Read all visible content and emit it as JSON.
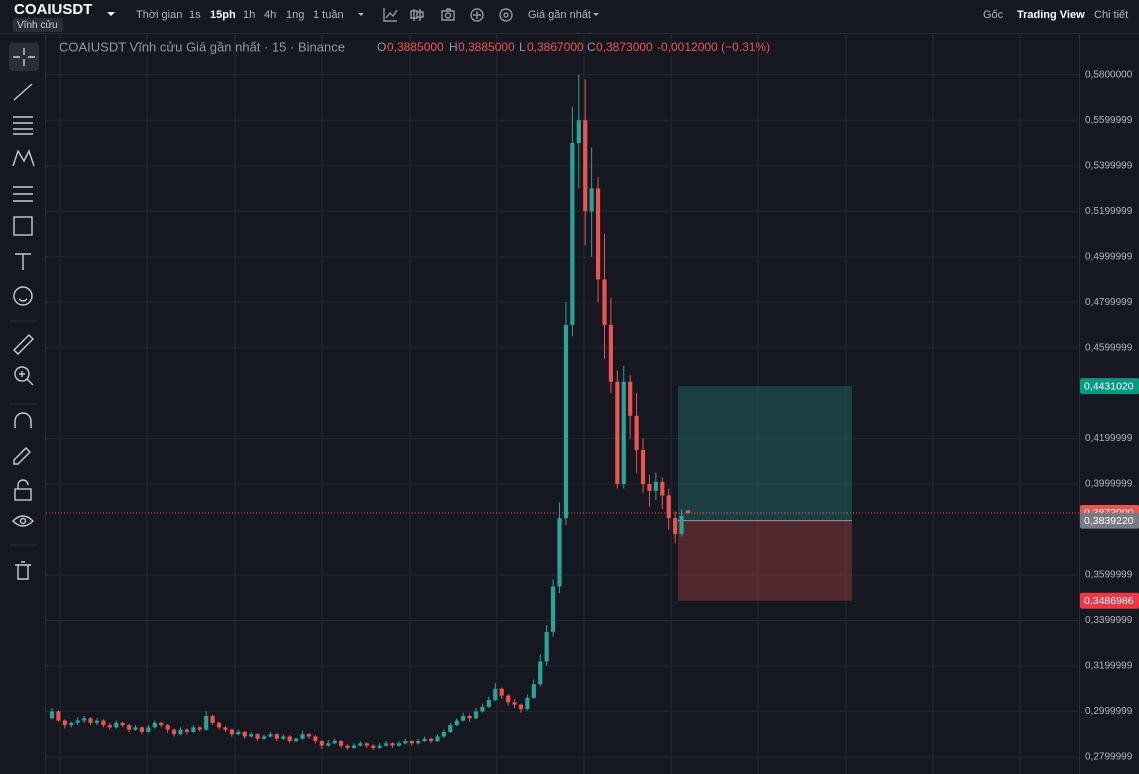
{
  "toolbar": {
    "symbol": "COAIUSDT",
    "contract": "Vĩnh cửu",
    "intervals_label": "Thời gian",
    "intervals": [
      "1s",
      "15ph",
      "1h",
      "4h",
      "1ng",
      "1 tuần"
    ],
    "price_type": "Giá gần nhất",
    "views": [
      "Gốc",
      "Trading View",
      "Chi tiết"
    ]
  },
  "legend": {
    "title": "COAIUSDT Vĩnh cửu Giá gần nhất · 15 · Binance",
    "o_key": "O",
    "open": "0,3885000",
    "h_key": "H",
    "high": "0,3885000",
    "l_key": "L",
    "low": "0,3867000",
    "c_key": "C",
    "close": "0,3873000",
    "change": "-0,0012000 (−0.31%)"
  },
  "chart_data": {
    "type": "candlestick",
    "up_color": "#26a69a",
    "down_color": "#ef5350",
    "grid": true,
    "ylim": [
      0.2725,
      0.5975
    ],
    "yticks": [
      {
        "value": 0.58,
        "label": "0,5800000"
      },
      {
        "value": 0.5599999,
        "label": "0,5599999"
      },
      {
        "value": 0.5399999,
        "label": "0,5399999"
      },
      {
        "value": 0.5199999,
        "label": "0,5199999"
      },
      {
        "value": 0.4999999,
        "label": "0,4999999"
      },
      {
        "value": 0.4799999,
        "label": "0,4799999"
      },
      {
        "value": 0.4599999,
        "label": "0,4599999"
      },
      {
        "value": 0.4199999,
        "label": "0,4199999"
      },
      {
        "value": 0.3999999,
        "label": "0,3999999"
      },
      {
        "value": 0.3599999,
        "label": "0,3599999"
      },
      {
        "value": 0.3399999,
        "label": "0,3399999"
      },
      {
        "value": 0.3199999,
        "label": "0,3199999"
      },
      {
        "value": 0.2999999,
        "label": "0,2999999"
      },
      {
        "value": 0.2799999,
        "label": "0,2799999"
      }
    ],
    "last_price": {
      "value": 0.3873,
      "label": "0,3873000"
    },
    "position": {
      "target": {
        "value": 0.443102,
        "label": "0,4431020"
      },
      "entry": {
        "value": 0.383922,
        "label": "0,3839220"
      },
      "stop": {
        "value": 0.3486986,
        "label": "0,3486986"
      }
    },
    "candles": [
      [
        0.297,
        0.3015,
        0.2965,
        0.3
      ],
      [
        0.3,
        0.3005,
        0.2955,
        0.296
      ],
      [
        0.296,
        0.2965,
        0.2925,
        0.294
      ],
      [
        0.294,
        0.2955,
        0.293,
        0.295
      ],
      [
        0.295,
        0.2975,
        0.294,
        0.296
      ],
      [
        0.296,
        0.298,
        0.295,
        0.297
      ],
      [
        0.297,
        0.2975,
        0.294,
        0.295
      ],
      [
        0.295,
        0.297,
        0.294,
        0.296
      ],
      [
        0.296,
        0.2965,
        0.293,
        0.294
      ],
      [
        0.294,
        0.295,
        0.292,
        0.293
      ],
      [
        0.293,
        0.296,
        0.2925,
        0.295
      ],
      [
        0.295,
        0.2955,
        0.293,
        0.294
      ],
      [
        0.294,
        0.2945,
        0.291,
        0.292
      ],
      [
        0.292,
        0.294,
        0.2915,
        0.293
      ],
      [
        0.293,
        0.2935,
        0.29,
        0.291
      ],
      [
        0.291,
        0.294,
        0.2905,
        0.293
      ],
      [
        0.293,
        0.296,
        0.2925,
        0.295
      ],
      [
        0.295,
        0.2955,
        0.293,
        0.294
      ],
      [
        0.294,
        0.2945,
        0.2905,
        0.292
      ],
      [
        0.292,
        0.2925,
        0.289,
        0.29
      ],
      [
        0.29,
        0.293,
        0.2895,
        0.292
      ],
      [
        0.292,
        0.2925,
        0.29,
        0.291
      ],
      [
        0.291,
        0.294,
        0.2905,
        0.293
      ],
      [
        0.293,
        0.2935,
        0.291,
        0.292
      ],
      [
        0.292,
        0.3,
        0.2915,
        0.298
      ],
      [
        0.298,
        0.2985,
        0.294,
        0.295
      ],
      [
        0.295,
        0.2955,
        0.292,
        0.293
      ],
      [
        0.293,
        0.2935,
        0.291,
        0.292
      ],
      [
        0.292,
        0.2925,
        0.289,
        0.29
      ],
      [
        0.29,
        0.292,
        0.2895,
        0.291
      ],
      [
        0.291,
        0.2915,
        0.288,
        0.289
      ],
      [
        0.289,
        0.291,
        0.2885,
        0.29
      ],
      [
        0.29,
        0.2905,
        0.287,
        0.288
      ],
      [
        0.288,
        0.29,
        0.2875,
        0.289
      ],
      [
        0.289,
        0.291,
        0.2885,
        0.29
      ],
      [
        0.29,
        0.2905,
        0.287,
        0.288
      ],
      [
        0.288,
        0.29,
        0.2875,
        0.289
      ],
      [
        0.289,
        0.2895,
        0.286,
        0.287
      ],
      [
        0.287,
        0.2885,
        0.2865,
        0.288
      ],
      [
        0.288,
        0.2915,
        0.2875,
        0.29
      ],
      [
        0.29,
        0.2905,
        0.288,
        0.289
      ],
      [
        0.289,
        0.2895,
        0.286,
        0.287
      ],
      [
        0.287,
        0.2875,
        0.2835,
        0.285
      ],
      [
        0.285,
        0.2875,
        0.2845,
        0.286
      ],
      [
        0.286,
        0.288,
        0.2855,
        0.287
      ],
      [
        0.287,
        0.2875,
        0.284,
        0.285
      ],
      [
        0.285,
        0.2855,
        0.283,
        0.284
      ],
      [
        0.284,
        0.286,
        0.2835,
        0.285
      ],
      [
        0.285,
        0.287,
        0.2845,
        0.286
      ],
      [
        0.286,
        0.2865,
        0.284,
        0.285
      ],
      [
        0.285,
        0.2855,
        0.283,
        0.284
      ],
      [
        0.284,
        0.286,
        0.2835,
        0.285
      ],
      [
        0.285,
        0.287,
        0.2845,
        0.286
      ],
      [
        0.286,
        0.2865,
        0.284,
        0.285
      ],
      [
        0.285,
        0.287,
        0.2845,
        0.286
      ],
      [
        0.286,
        0.288,
        0.2855,
        0.287
      ],
      [
        0.287,
        0.2875,
        0.285,
        0.286
      ],
      [
        0.286,
        0.288,
        0.2855,
        0.287
      ],
      [
        0.287,
        0.289,
        0.2865,
        0.288
      ],
      [
        0.288,
        0.2885,
        0.286,
        0.287
      ],
      [
        0.287,
        0.29,
        0.2865,
        0.289
      ],
      [
        0.289,
        0.292,
        0.2885,
        0.291
      ],
      [
        0.291,
        0.295,
        0.2905,
        0.294
      ],
      [
        0.294,
        0.297,
        0.2935,
        0.296
      ],
      [
        0.296,
        0.2995,
        0.2955,
        0.298
      ],
      [
        0.298,
        0.2985,
        0.2955,
        0.297
      ],
      [
        0.297,
        0.3015,
        0.2965,
        0.3
      ],
      [
        0.3,
        0.3035,
        0.2995,
        0.302
      ],
      [
        0.302,
        0.3065,
        0.3015,
        0.305
      ],
      [
        0.305,
        0.3125,
        0.3045,
        0.31
      ],
      [
        0.31,
        0.3105,
        0.3055,
        0.307
      ],
      [
        0.307,
        0.3075,
        0.3025,
        0.304
      ],
      [
        0.304,
        0.3055,
        0.3015,
        0.303
      ],
      [
        0.303,
        0.3035,
        0.2995,
        0.301
      ],
      [
        0.301,
        0.3075,
        0.3005,
        0.306
      ],
      [
        0.306,
        0.314,
        0.3055,
        0.312
      ],
      [
        0.312,
        0.325,
        0.311,
        0.322
      ],
      [
        0.322,
        0.338,
        0.32,
        0.335
      ],
      [
        0.335,
        0.358,
        0.333,
        0.355
      ],
      [
        0.355,
        0.392,
        0.352,
        0.385
      ],
      [
        0.385,
        0.48,
        0.382,
        0.47
      ],
      [
        0.47,
        0.566,
        0.465,
        0.55
      ],
      [
        0.55,
        0.58,
        0.53,
        0.56
      ],
      [
        0.56,
        0.578,
        0.505,
        0.52
      ],
      [
        0.52,
        0.548,
        0.5,
        0.53
      ],
      [
        0.53,
        0.535,
        0.48,
        0.49
      ],
      [
        0.49,
        0.51,
        0.455,
        0.47
      ],
      [
        0.47,
        0.482,
        0.44,
        0.445
      ],
      [
        0.445,
        0.45,
        0.398,
        0.4
      ],
      [
        0.4,
        0.452,
        0.398,
        0.445
      ],
      [
        0.445,
        0.448,
        0.42,
        0.43
      ],
      [
        0.43,
        0.44,
        0.405,
        0.415
      ],
      [
        0.415,
        0.42,
        0.396,
        0.4
      ],
      [
        0.4,
        0.404,
        0.39,
        0.397
      ],
      [
        0.397,
        0.405,
        0.393,
        0.401
      ],
      [
        0.401,
        0.403,
        0.389,
        0.395
      ],
      [
        0.395,
        0.398,
        0.38,
        0.385
      ],
      [
        0.385,
        0.388,
        0.374,
        0.378
      ],
      [
        0.378,
        0.389,
        0.377,
        0.386
      ],
      [
        0.3885,
        0.3885,
        0.3867,
        0.3873
      ]
    ]
  }
}
